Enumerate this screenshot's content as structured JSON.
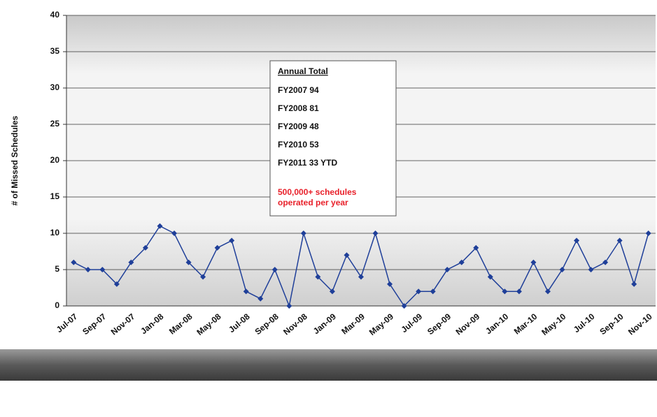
{
  "chart_data": {
    "type": "line",
    "y_label": "# of Missed Schedules",
    "categories": [
      "Jul-07",
      null,
      "Sep-07",
      null,
      "Nov-07",
      null,
      "Jan-08",
      null,
      "Mar-08",
      null,
      "May-08",
      null,
      "Jul-08",
      null,
      "Sep-08",
      null,
      "Nov-08",
      null,
      "Jan-09",
      null,
      "Mar-09",
      null,
      "May-09",
      null,
      "Jul-09",
      null,
      "Sep-09",
      null,
      "Nov-09",
      null,
      "Jan-10",
      null,
      "Mar-10",
      null,
      "May-10",
      null,
      "Jul-10",
      null,
      "Sep-10",
      null,
      "Nov-10"
    ],
    "values": [
      6,
      5,
      5,
      3,
      6,
      8,
      11,
      10,
      6,
      4,
      8,
      9,
      2,
      1,
      5,
      0,
      10,
      4,
      2,
      7,
      4,
      10,
      3,
      0,
      2,
      2,
      5,
      6,
      8,
      4,
      2,
      2,
      6,
      2,
      5,
      9,
      5,
      6,
      9,
      3,
      10
    ],
    "color": "#1f3f99",
    "ylim": [
      0,
      40
    ],
    "yticks": [
      0,
      5,
      10,
      15,
      20,
      25,
      30,
      35,
      40
    ],
    "grid": true,
    "annotation": {
      "title": "Annual Total",
      "lines": [
        "FY2007 94",
        "FY2008 81",
        "FY2009 48",
        "FY2010 53",
        "FY2011 33 YTD"
      ],
      "note": [
        "500,000+ schedules",
        "operated per year"
      ]
    }
  }
}
